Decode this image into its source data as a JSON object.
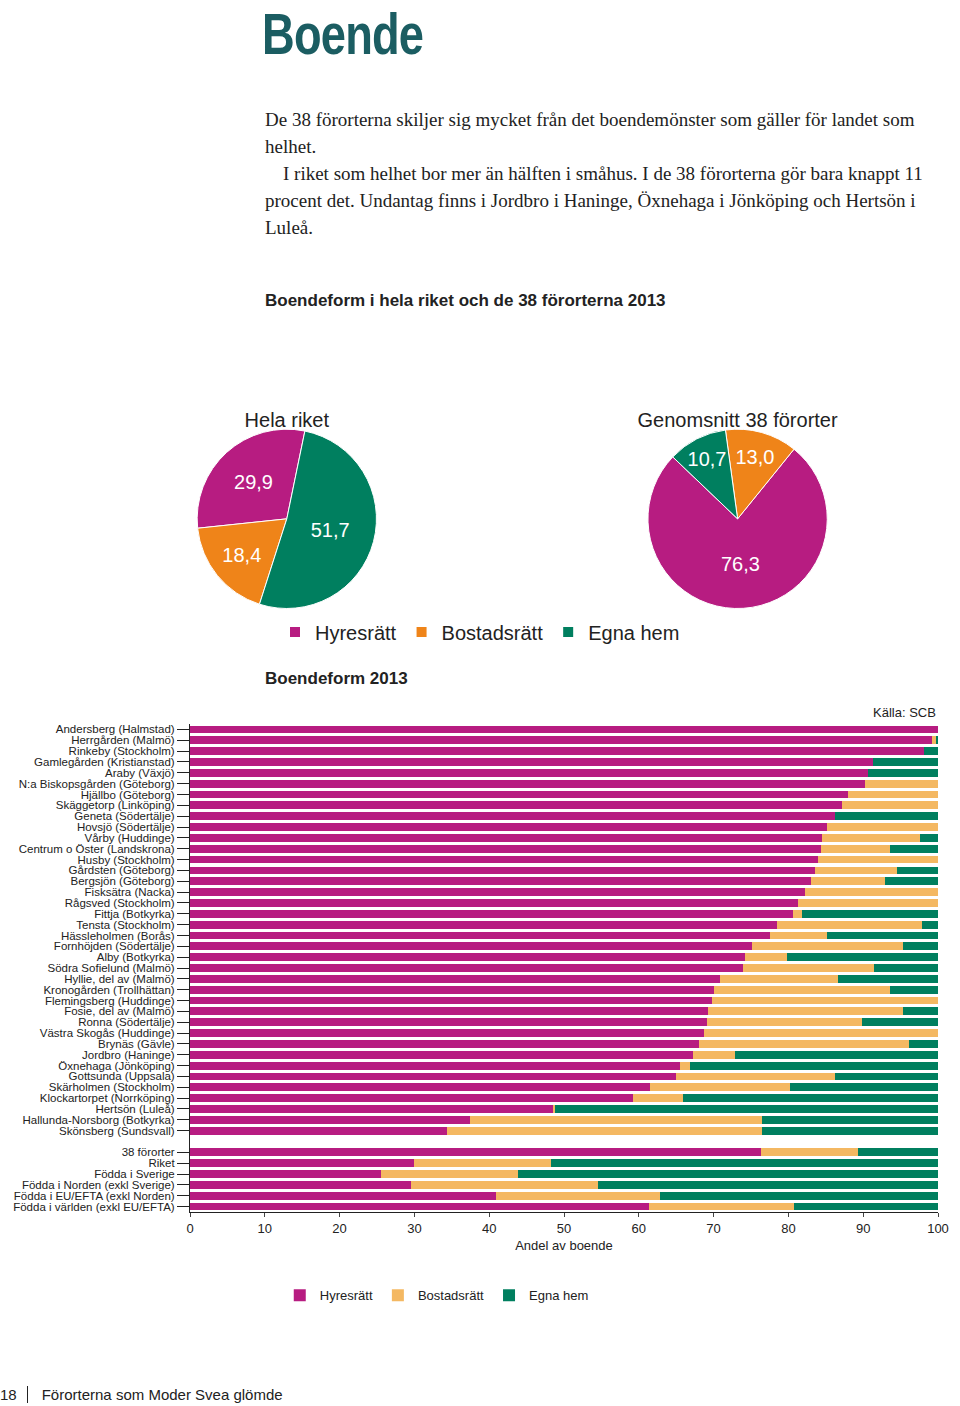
{
  "page": {
    "heading": "Boende",
    "paragraphs": [
      "De 38 förorterna skiljer sig mycket från det boendemönster som gäller för landet som helhet.",
      "I riket som helhet bor mer än hälften i småhus. I de 38 förorterna gör bara knappt 11 procent det. Undantag finns i Jordbro i Haninge, Öxnehaga i Jönköping och Hertsön i Luleå."
    ],
    "figure_title": "Boendeform i hela riket och de 38 förorterna 2013",
    "footer_page": "18",
    "footer_text": "Förorterna som Moder Svea glömde"
  },
  "chart_data": [
    {
      "type": "pie",
      "title": "Hela riket",
      "categories": [
        "Hyresrätt",
        "Bostadsrätt",
        "Egna hem"
      ],
      "values": [
        29.9,
        18.4,
        51.7
      ],
      "value_labels": [
        "29,9",
        "18,4",
        "51,7"
      ],
      "colors": [
        "#b71c81",
        "#ef8419",
        "#007f5f"
      ],
      "data_labels": true,
      "legend": "bottom"
    },
    {
      "type": "pie",
      "title": "Genomsnitt 38 förorter",
      "categories": [
        "Hyresrätt",
        "Bostadsrätt",
        "Egna hem"
      ],
      "values": [
        76.3,
        13.0,
        10.7
      ],
      "value_labels": [
        "76,3",
        "13,0",
        "10,7"
      ],
      "colors": [
        "#b71c81",
        "#ef8419",
        "#007f5f"
      ],
      "data_labels": true,
      "legend": "bottom"
    },
    {
      "type": "bar",
      "title": "Boendeform 2013",
      "orientation": "horizontal",
      "stacked": true,
      "annotations": [
        "Källa: SCB"
      ],
      "xlabel": "Andel av boende",
      "xlim": [
        0,
        100
      ],
      "xticks": [
        0,
        10,
        20,
        30,
        40,
        50,
        60,
        70,
        80,
        90,
        100
      ],
      "grid": false,
      "legend": "bottom",
      "categories": [
        "Andersberg (Halmstad)",
        "Herrgården (Malmö)",
        "Rinkeby (Stockholm)",
        "Gamlegården (Kristianstad)",
        "Araby (Växjö)",
        "N:a Biskopsgården (Göteborg)",
        "Hjällbo (Göteborg)",
        "Skäggetorp (Linköping)",
        "Geneta (Södertälje)",
        "Hovsjö (Södertälje)",
        "Vårby (Huddinge)",
        "Centrum o Öster (Landskrona)",
        "Husby (Stockholm)",
        "Gårdsten (Göteborg)",
        "Bergsjön (Göteborg)",
        "Fisksätra (Nacka)",
        "Rågsved (Stockholm)",
        "Fittja (Botkyrka)",
        "Tensta (Stockholm)",
        "Hässleholmen (Borås)",
        "Fornhöjden (Södertälje)",
        "Alby (Botkyrka)",
        "Södra Sofielund (Malmö)",
        "Hyllie, del av (Malmö)",
        "Kronogården (Trollhättan)",
        "Flemingsberg (Huddinge)",
        "Fosie, del av (Malmö)",
        "Ronna (Södertälje)",
        "Västra Skogås (Huddinge)",
        "Brynäs (Gävle)",
        "Jordbro (Haninge)",
        "Öxnehaga (Jönköping)",
        "Gottsunda (Uppsala)",
        "Skärholmen (Stockholm)",
        "Klockartorpet (Norrköping)",
        "Hertsön (Luleå)",
        "Hallunda-Norsborg (Botkyrka)",
        "Skönsberg (Sundsvall)",
        null,
        "38 förorter",
        "Riket",
        "Födda i Sverige",
        "Födda i Norden (exkl Sverige)",
        "Födda i EU/EFTA (exkl Norden)",
        "Födda i världen (exkl EU/EFTA)"
      ],
      "series": [
        {
          "name": "Hyresrätt",
          "color": "#b71c81",
          "values": [
            100,
            99.2,
            98.1,
            91.3,
            90.6,
            90.2,
            88.0,
            87.1,
            86.2,
            85.2,
            84.5,
            84.3,
            84.0,
            83.6,
            83.0,
            82.2,
            81.3,
            80.6,
            78.5,
            77.6,
            75.1,
            74.2,
            73.9,
            70.8,
            70.0,
            69.8,
            69.2,
            69.1,
            68.7,
            68.1,
            67.2,
            65.5,
            65.0,
            61.5,
            59.2,
            48.5,
            37.4,
            34.4,
            null,
            76.3,
            29.9,
            25.6,
            29.6,
            40.9,
            61.4
          ]
        },
        {
          "name": "Bostadsrätt",
          "color": "#f4b862",
          "values": [
            0,
            0.5,
            0,
            0,
            0,
            9.8,
            12.0,
            12.9,
            0,
            14.8,
            13.1,
            9.3,
            16.0,
            10.9,
            9.9,
            17.8,
            18.7,
            1.2,
            19.3,
            7.6,
            20.2,
            5.6,
            17.5,
            15.8,
            23.6,
            30.2,
            26.1,
            20.8,
            31.3,
            28.0,
            5.6,
            1.4,
            21.2,
            18.7,
            6.7,
            0.3,
            39.1,
            42.1,
            null,
            13.0,
            18.4,
            18.3,
            24.9,
            22.0,
            19.3
          ]
        },
        {
          "name": "Egna hem",
          "color": "#007f5f",
          "values": [
            0,
            0.3,
            1.9,
            8.7,
            9.4,
            0,
            0,
            0,
            13.8,
            0,
            2.4,
            6.4,
            0,
            5.5,
            7.1,
            0,
            0,
            18.2,
            2.2,
            14.8,
            4.7,
            20.2,
            8.6,
            13.4,
            6.4,
            0,
            4.7,
            10.1,
            0,
            3.9,
            27.2,
            33.1,
            13.8,
            19.8,
            34.1,
            51.2,
            23.5,
            23.5,
            null,
            10.7,
            51.7,
            56.1,
            45.5,
            37.1,
            19.3
          ]
        }
      ]
    }
  ]
}
